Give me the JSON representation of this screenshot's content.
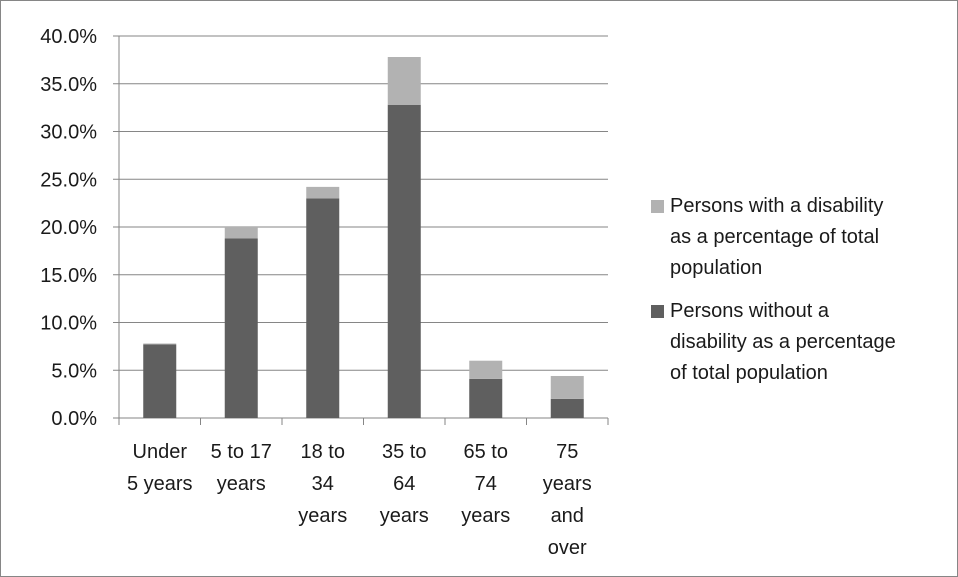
{
  "chart_data": {
    "type": "bar",
    "stacked": true,
    "categories": [
      [
        "Under",
        "5 years"
      ],
      [
        "5 to 17",
        "years"
      ],
      [
        "18 to",
        "34",
        "years"
      ],
      [
        "35 to",
        "64",
        "years"
      ],
      [
        "65 to",
        "74",
        "years"
      ],
      [
        "75",
        "years",
        "and",
        "over"
      ]
    ],
    "series": [
      {
        "name": "Persons without a disability as a percentage of total population",
        "color": "#5f5f5f",
        "values": [
          7.7,
          18.8,
          23.0,
          32.8,
          4.1,
          2.0
        ]
      },
      {
        "name": "Persons with a disability as a percentage of total population",
        "color": "#b2b2b2",
        "values": [
          0.1,
          1.2,
          1.2,
          5.0,
          1.9,
          2.4
        ]
      }
    ],
    "ylim": [
      0,
      40
    ],
    "yticks": [
      "0.0%",
      "5.0%",
      "10.0%",
      "15.0%",
      "20.0%",
      "25.0%",
      "30.0%",
      "35.0%",
      "40.0%"
    ],
    "grid": true,
    "legend_position": "right",
    "title": "",
    "xlabel": "",
    "ylabel": ""
  },
  "legend": [
    {
      "label_lines": [
        "Persons with a disability",
        "as a percentage of total",
        "population"
      ],
      "color": "#b2b2b2"
    },
    {
      "label_lines": [
        "Persons without a",
        "disability as a percentage",
        "of total population"
      ],
      "color": "#5f5f5f"
    }
  ]
}
